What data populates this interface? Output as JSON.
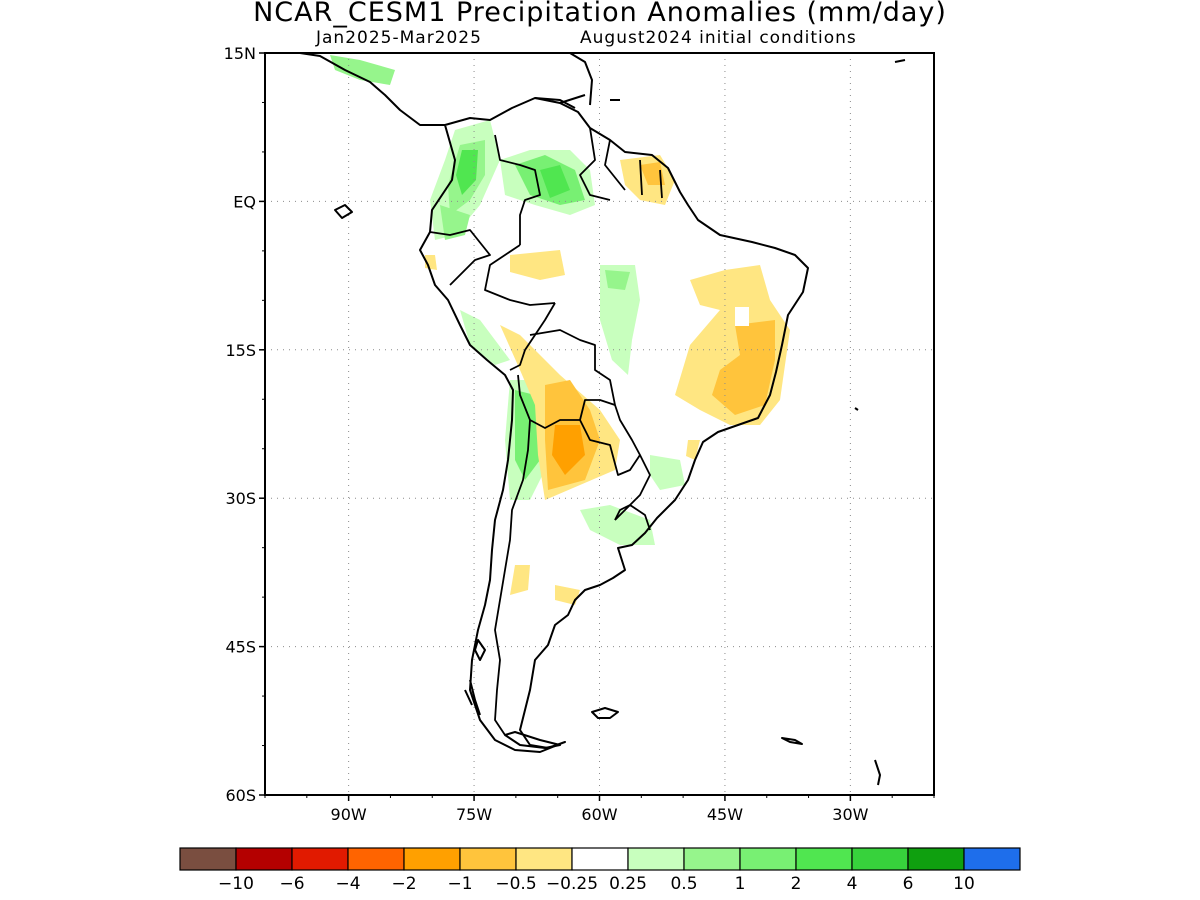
{
  "title": "NCAR_CESM1 Precipitation Anomalies (mm/day)",
  "subtitle_period": "Jan2025-Mar2025",
  "subtitle_init": "August2024 initial conditions",
  "axes": {
    "lat_ticks": [
      {
        "value": 15,
        "label": "15N"
      },
      {
        "value": 0,
        "label": "EQ"
      },
      {
        "value": -15,
        "label": "15S"
      },
      {
        "value": -30,
        "label": "30S"
      },
      {
        "value": -45,
        "label": "45S"
      },
      {
        "value": -60,
        "label": "60S"
      }
    ],
    "lon_ticks": [
      {
        "value": -90,
        "label": "90W"
      },
      {
        "value": -75,
        "label": "75W"
      },
      {
        "value": -60,
        "label": "60W"
      },
      {
        "value": -45,
        "label": "45W"
      },
      {
        "value": -30,
        "label": "30W"
      }
    ],
    "lon_range": [
      -100,
      -20
    ],
    "lat_range": [
      -60,
      15
    ],
    "grid": "dotted"
  },
  "colorbar": {
    "colors": [
      "#7a4e40",
      "#b40000",
      "#e11a00",
      "#ff6400",
      "#ffa000",
      "#ffc43c",
      "#ffe682",
      "#ffffff",
      "#c8ffbe",
      "#96f58c",
      "#78f073",
      "#50e650",
      "#37d23c",
      "#0fa00f",
      "#1e6eeb"
    ],
    "labels": [
      "-10",
      "-6",
      "-4",
      "-2",
      "-1",
      "-0.5",
      "-0.25",
      "0.25",
      "0.5",
      "1",
      "2",
      "4",
      "6",
      "10"
    ]
  },
  "features": {
    "colors": {
      "coast": "#000000",
      "border": "#000000"
    }
  }
}
